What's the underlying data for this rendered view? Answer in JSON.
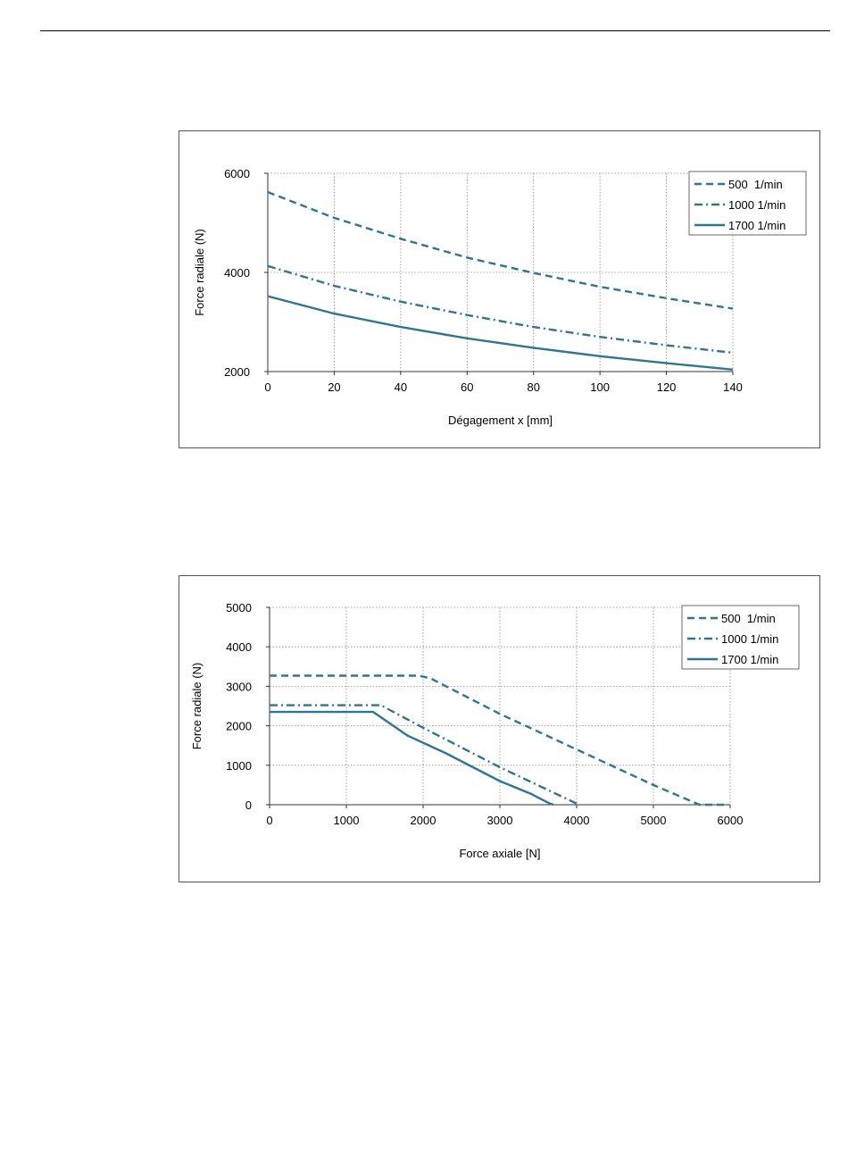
{
  "chart_data": [
    {
      "type": "line",
      "xlabel": "Dégagement x [mm]",
      "ylabel": "Force radiale (N)",
      "xlim": [
        0,
        140
      ],
      "ylim": [
        2000,
        6000
      ],
      "xticks": [
        "0",
        "20",
        "40",
        "60",
        "80",
        "100",
        "120",
        "140"
      ],
      "yticks": [
        "2000",
        "4000",
        "6000"
      ],
      "grid": true,
      "legend_position": "top-right",
      "series": [
        {
          "name": "500  1/min",
          "style": "dashed",
          "color": "#2e7693",
          "x": [
            0,
            20,
            40,
            60,
            80,
            100,
            120,
            140
          ],
          "y": [
            5620,
            5100,
            4680,
            4300,
            3990,
            3710,
            3480,
            3270
          ]
        },
        {
          "name": "1000 1/min",
          "style": "dashdot",
          "color": "#2e7693",
          "x": [
            0,
            20,
            40,
            60,
            80,
            100,
            120,
            140
          ],
          "y": [
            4130,
            3730,
            3410,
            3140,
            2900,
            2700,
            2530,
            2380
          ]
        },
        {
          "name": "1700 1/min",
          "style": "solid",
          "color": "#2e7693",
          "x": [
            0,
            20,
            40,
            60,
            80,
            100,
            120,
            140
          ],
          "y": [
            3520,
            3170,
            2900,
            2670,
            2480,
            2310,
            2170,
            2040
          ]
        }
      ]
    },
    {
      "type": "line",
      "xlabel": "Force axiale [N]",
      "ylabel": "Force radiale (N)",
      "xlim": [
        0,
        6000
      ],
      "ylim": [
        0,
        5000
      ],
      "xticks": [
        "0",
        "1000",
        "2000",
        "3000",
        "4000",
        "5000",
        "6000"
      ],
      "yticks": [
        "0",
        "1000",
        "2000",
        "3000",
        "4000",
        "5000"
      ],
      "grid": true,
      "legend_position": "top-right",
      "series": [
        {
          "name": "500  1/min",
          "style": "dashed",
          "color": "#2e7693",
          "x": [
            0,
            1000,
            1950,
            2100,
            3000,
            4000,
            5000,
            5600,
            5950
          ],
          "y": [
            3270,
            3270,
            3270,
            3200,
            2300,
            1400,
            500,
            0,
            0
          ]
        },
        {
          "name": "1000 1/min",
          "style": "dashdot",
          "color": "#2e7693",
          "x": [
            0,
            1000,
            1450,
            2000,
            3000,
            4000,
            4030
          ],
          "y": [
            2520,
            2520,
            2520,
            1950,
            950,
            30,
            0
          ]
        },
        {
          "name": "1700 1/min",
          "style": "solid",
          "color": "#2e7693",
          "x": [
            0,
            1000,
            1350,
            1800,
            2300,
            3000,
            3400,
            3650,
            3700
          ],
          "y": [
            2350,
            2350,
            2350,
            1750,
            1300,
            600,
            280,
            30,
            0
          ]
        }
      ]
    }
  ]
}
